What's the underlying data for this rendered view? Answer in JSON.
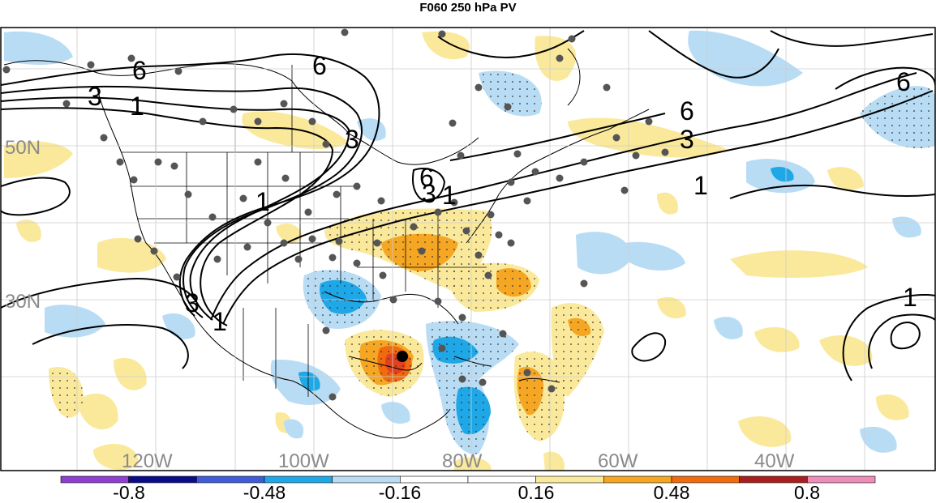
{
  "title": "F060 250 hPa PV",
  "map": {
    "lat_labels": [
      "50N",
      "30N"
    ],
    "lon_labels": [
      "120W",
      "100W",
      "80W",
      "60W",
      "40W"
    ],
    "contour_labels": [
      "6",
      "3",
      "1",
      "6",
      "3",
      "1",
      "3",
      "6",
      "1",
      "6",
      "3",
      "1",
      "6",
      "3",
      "1",
      "1"
    ],
    "fill_colors": {
      "light_yellow": "#fbe99b",
      "orange": "#f5a623",
      "dark_orange": "#f06a10",
      "red": "#e3401b",
      "light_blue": "#b9dcf5",
      "blue": "#1fa8e8"
    },
    "marker_colors": {
      "station": "#555555",
      "center": "#000000"
    }
  },
  "colorbar": {
    "colors": [
      "#8e3fd1",
      "#0b0b8a",
      "#3f5bd6",
      "#1fa8e8",
      "#b9dcf5",
      "#ffffff",
      "#ffffff",
      "#fbe99b",
      "#f5a623",
      "#f06a10",
      "#a81f1f",
      "#f08cb8"
    ],
    "labels": [
      "-0.8",
      "-0.48",
      "-0.16",
      "0.16",
      "0.48",
      "0.8"
    ]
  }
}
